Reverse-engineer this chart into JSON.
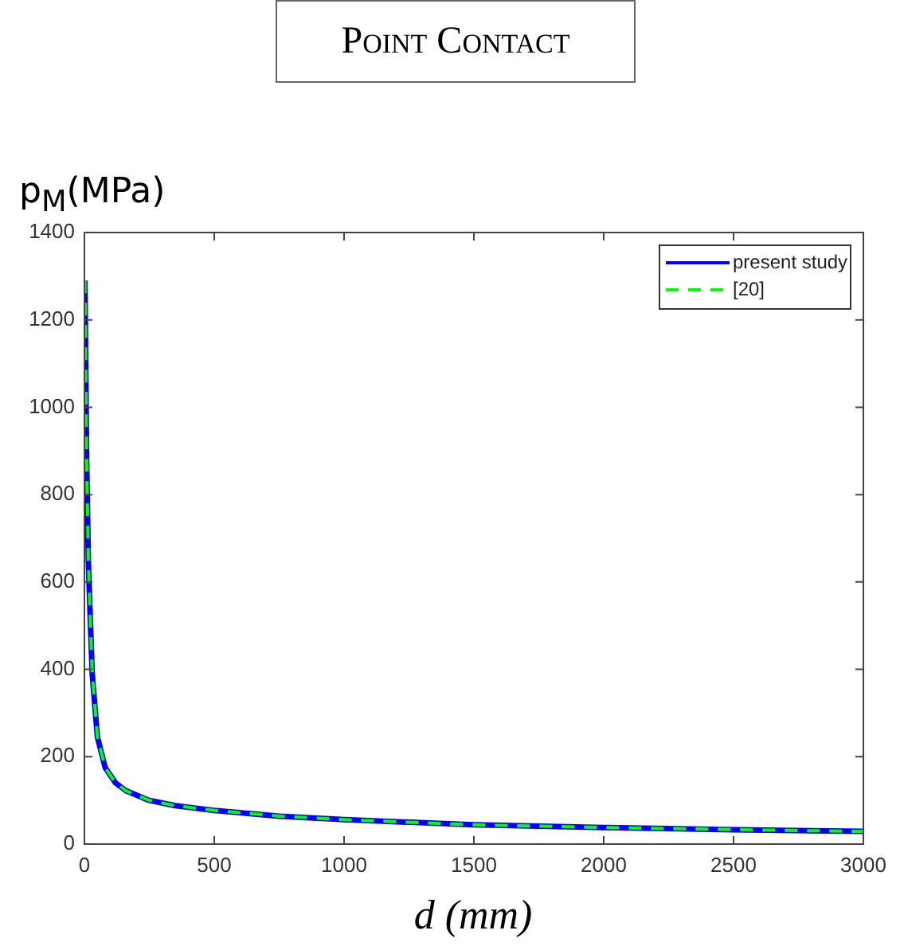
{
  "chart_data": {
    "type": "line",
    "title": "Point Contact",
    "xlabel": "d (mm)",
    "ylabel": "p$_{M}$(MPa)",
    "xlim": [
      0,
      3000
    ],
    "xticks": [
      0,
      500,
      1000,
      1500,
      2000,
      2500,
      3000
    ],
    "ylim": [
      0,
      1400
    ],
    "yticks": [
      0,
      200,
      400,
      600,
      800,
      1000,
      1200,
      1400
    ],
    "x": [
      2,
      8,
      15,
      20,
      30,
      50,
      80,
      120,
      160,
      250,
      350,
      500,
      750,
      1000,
      1500,
      2000,
      2500,
      3000
    ],
    "series": [
      {
        "name": "present study",
        "color": "#0000ff",
        "line_style": "solid",
        "values": [
          1290,
          900,
          650,
          560,
          390,
          245,
          175,
          140,
          122,
          100,
          88,
          77,
          64,
          56,
          44,
          38,
          33,
          29
        ]
      },
      {
        "name": "[20]",
        "color": "#00ff00",
        "line_style": "dashed",
        "values": [
          1290,
          900,
          650,
          560,
          390,
          245,
          175,
          140,
          122,
          100,
          88,
          77,
          64,
          56,
          44,
          38,
          33,
          29
        ]
      }
    ],
    "legend": "top right",
    "grid": false,
    "marker": "none"
  }
}
